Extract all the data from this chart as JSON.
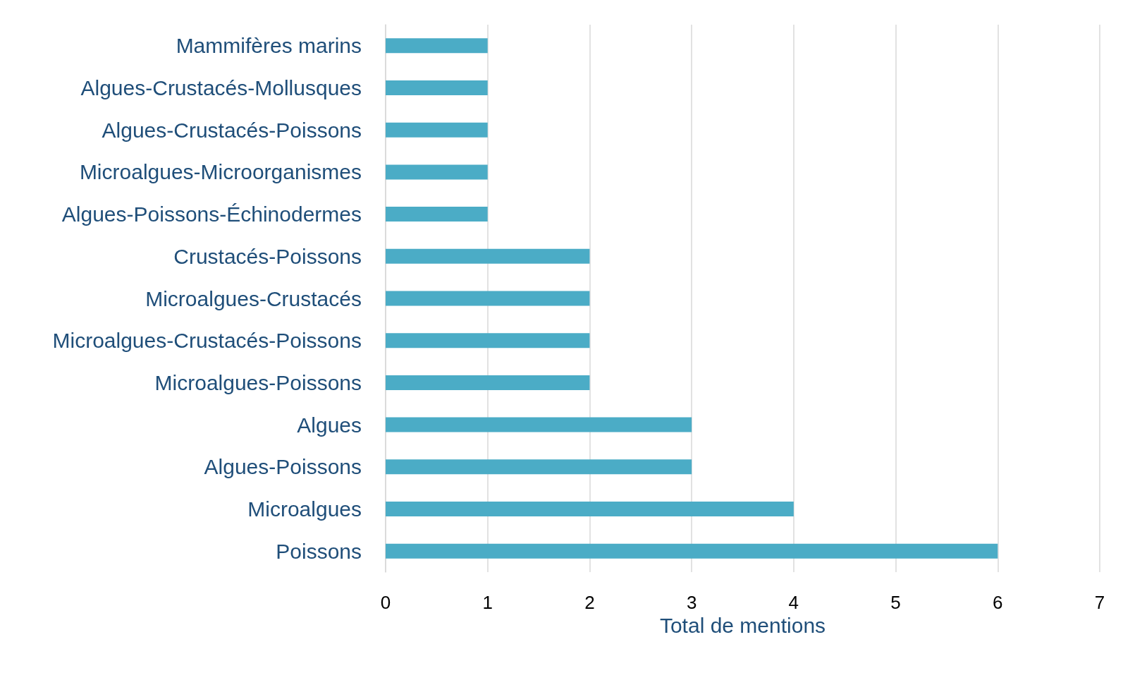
{
  "chart_data": {
    "type": "bar",
    "orientation": "horizontal",
    "xlabel": "Total de mentions",
    "categories": [
      "Mammifères marins",
      "Algues-Crustacés-Mollusques",
      "Algues-Crustacés-Poissons",
      "Microalgues-Microorganismes",
      "Algues-Poissons-Échinodermes",
      "Crustacés-Poissons",
      "Microalgues-Crustacés",
      "Microalgues-Crustacés-Poissons",
      "Microalgues-Poissons",
      "Algues",
      "Algues-Poissons",
      "Microalgues",
      "Poissons"
    ],
    "values": [
      1,
      1,
      1,
      1,
      1,
      2,
      2,
      2,
      2,
      3,
      3,
      4,
      6
    ],
    "color": "#4bacc6",
    "xlim": [
      0,
      7
    ],
    "xticks": [
      0,
      1,
      2,
      3,
      4,
      5,
      6,
      7
    ],
    "grid": "x"
  }
}
